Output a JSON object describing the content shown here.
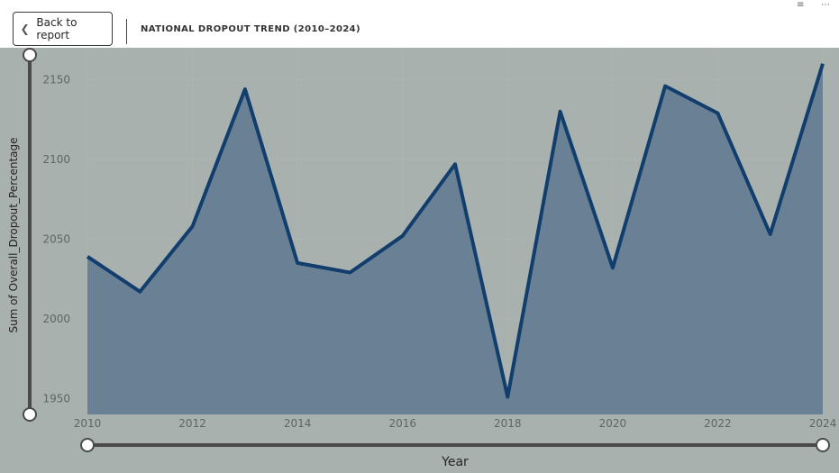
{
  "header": {
    "back_label": "Back to report",
    "back_icon": "chevron-left-icon",
    "title": "NATIONAL DROPOUT TREND (2010–2024)",
    "filter_icon": "filter-icon",
    "more_icon": "more-options-icon"
  },
  "colors": {
    "background": "#a9b1af",
    "area_fill": "#6a8195",
    "line": "#123e6e",
    "axis_text": "#5f6661"
  },
  "chart_data": {
    "type": "area",
    "title": "",
    "xlabel": "Year",
    "ylabel": "Sum of Overall_Dropout_Percentage",
    "x": [
      2010,
      2011,
      2012,
      2013,
      2014,
      2015,
      2016,
      2017,
      2018,
      2019,
      2020,
      2021,
      2022,
      2023,
      2024
    ],
    "series": [
      {
        "values": [
          2039,
          2017,
          2058,
          2144,
          2035,
          2029,
          2052,
          2097,
          1951,
          2130,
          2032,
          2146,
          2129,
          2053,
          2160
        ]
      }
    ],
    "xlim": [
      2010,
      2024
    ],
    "ylim": [
      1940,
      2170
    ],
    "x_ticks": [
      2010,
      2012,
      2014,
      2016,
      2018,
      2020,
      2022,
      2024
    ],
    "y_ticks": [
      1950,
      2000,
      2050,
      2100,
      2150
    ],
    "grid": true
  }
}
